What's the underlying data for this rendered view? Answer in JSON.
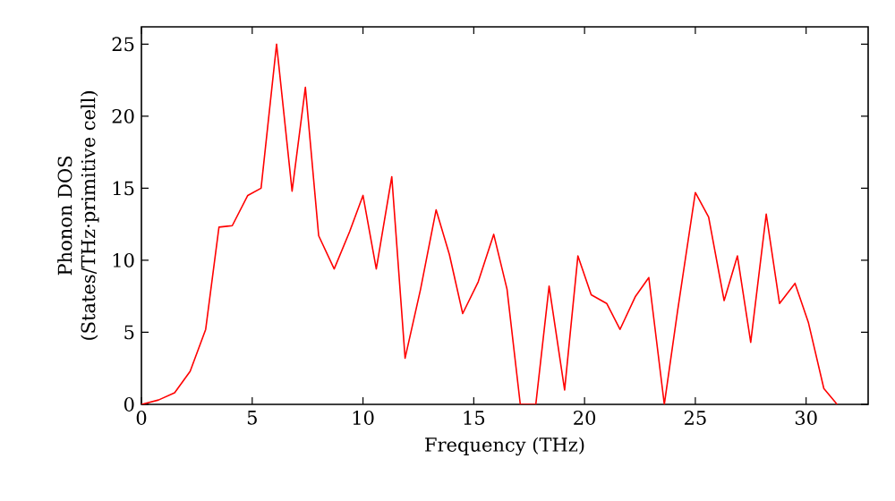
{
  "chart_data": {
    "type": "line",
    "xlabel": "Frequency (THz)",
    "ylabel": "Phonon DOS\n(States/THz·primitive cell)",
    "xlim": [
      0,
      32.8
    ],
    "ylim": [
      0,
      26.2
    ],
    "xticks": [
      0,
      5,
      10,
      15,
      20,
      25,
      30
    ],
    "yticks": [
      0,
      5,
      10,
      15,
      20,
      25
    ],
    "grid": false,
    "marker": "none",
    "line_style": "solid",
    "series": [
      {
        "color": "#ff0000",
        "x": [
          0,
          0.77,
          1.5,
          2.2,
          2.9,
          3.5,
          4.1,
          4.8,
          5.4,
          6.1,
          6.8,
          7.4,
          8.0,
          8.7,
          9.4,
          10.0,
          10.6,
          11.3,
          11.9,
          12.6,
          13.3,
          13.9,
          14.5,
          15.2,
          15.9,
          16.5,
          17.1,
          17.8,
          18.4,
          19.1,
          19.7,
          20.3,
          21.0,
          21.6,
          22.3,
          22.9,
          23.6,
          24.2,
          25.0,
          25.6,
          26.3,
          26.9,
          27.5,
          28.2,
          28.8,
          29.5,
          30.1,
          30.8,
          31.4
        ],
        "values": [
          0,
          0.3,
          0.8,
          2.3,
          5.2,
          12.3,
          12.4,
          14.5,
          15,
          25,
          14.8,
          22,
          11.7,
          9.4,
          12,
          14.5,
          9.4,
          15.8,
          3.2,
          8,
          13.5,
          10.4,
          6.3,
          8.5,
          11.8,
          8,
          0,
          0,
          8.2,
          1,
          10.3,
          7.6,
          7,
          5.2,
          7.5,
          8.8,
          0,
          6.5,
          14.7,
          13,
          7.2,
          10.3,
          4.3,
          13.2,
          7,
          8.4,
          5.7,
          1.1,
          0
        ]
      }
    ]
  }
}
